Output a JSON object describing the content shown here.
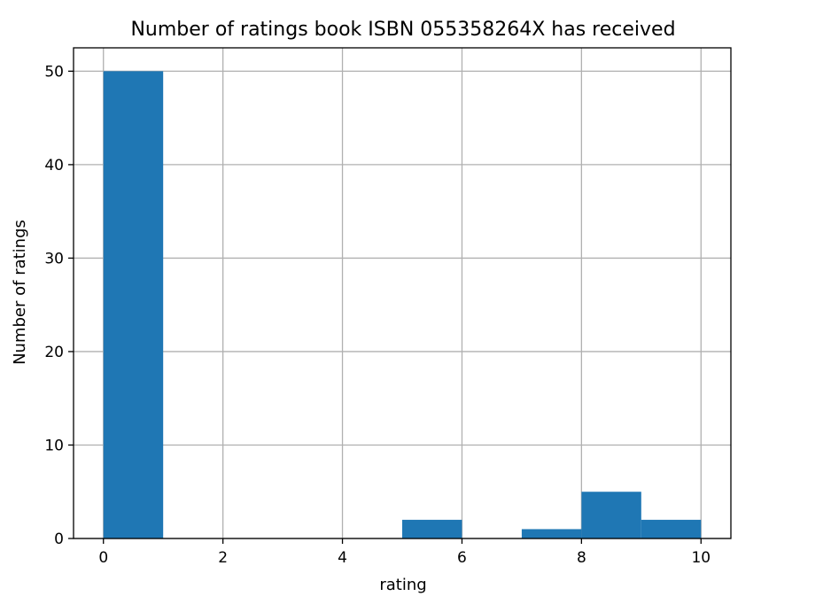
{
  "chart_data": {
    "type": "bar",
    "title": "Number of ratings book ISBN 055358264X has received",
    "xlabel": "rating",
    "ylabel": "Number of ratings",
    "bins": [
      {
        "x0": 0,
        "x1": 1,
        "count": 50
      },
      {
        "x0": 1,
        "x1": 2,
        "count": 0
      },
      {
        "x0": 2,
        "x1": 3,
        "count": 0
      },
      {
        "x0": 3,
        "x1": 4,
        "count": 0
      },
      {
        "x0": 4,
        "x1": 5,
        "count": 0
      },
      {
        "x0": 5,
        "x1": 6,
        "count": 2
      },
      {
        "x0": 6,
        "x1": 7,
        "count": 0
      },
      {
        "x0": 7,
        "x1": 8,
        "count": 1
      },
      {
        "x0": 8,
        "x1": 9,
        "count": 5
      },
      {
        "x0": 9,
        "x1": 10,
        "count": 2
      }
    ],
    "xlim": [
      -0.5,
      10.5
    ],
    "ylim": [
      0,
      52.5
    ],
    "xticks": [
      0,
      2,
      4,
      6,
      8,
      10
    ],
    "yticks": [
      0,
      10,
      20,
      30,
      40,
      50
    ],
    "grid": true,
    "bar_color": "#1f77b4"
  }
}
